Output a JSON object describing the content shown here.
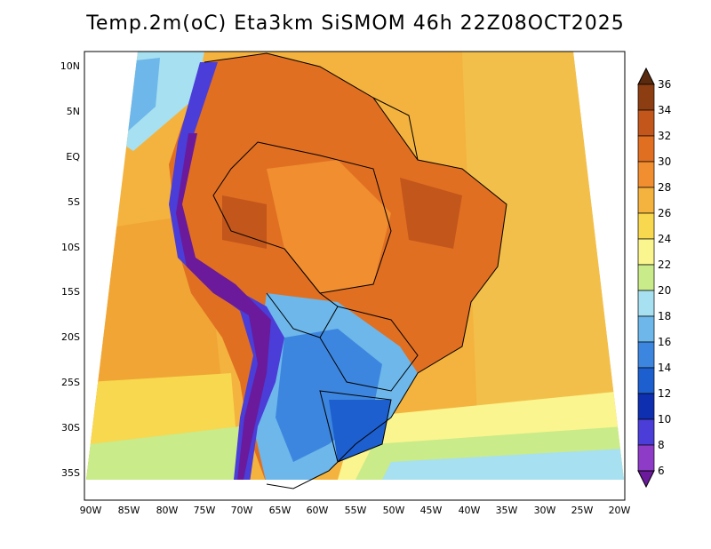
{
  "title": "Temp.2m(oC) Eta3km SiSMOM 46h 22Z08OCT2025",
  "map": {
    "lat_labels": [
      "10N",
      "5N",
      "EQ",
      "5S",
      "10S",
      "15S",
      "20S",
      "25S",
      "30S",
      "35S"
    ],
    "lon_labels": [
      "90W",
      "85W",
      "80W",
      "75W",
      "70W",
      "65W",
      "60W",
      "55W",
      "50W",
      "45W",
      "40W",
      "35W",
      "30W",
      "25W",
      "20W"
    ]
  },
  "colorbar": {
    "labels": [
      "36",
      "34",
      "32",
      "30",
      "28",
      "26",
      "24",
      "22",
      "20",
      "18",
      "16",
      "14",
      "12",
      "10",
      "8",
      "6"
    ],
    "colors": [
      "#5a2a0f",
      "#8c3d12",
      "#c2561b",
      "#e06f22",
      "#f08e30",
      "#f4b33e",
      "#f7d84e",
      "#faf58e",
      "#c9eb8a",
      "#a7e0f0",
      "#6db7ea",
      "#3d86df",
      "#1d5fcf",
      "#0e2fb0",
      "#4a3dd8",
      "#8e3bc8",
      "#6a1a9a"
    ]
  }
}
